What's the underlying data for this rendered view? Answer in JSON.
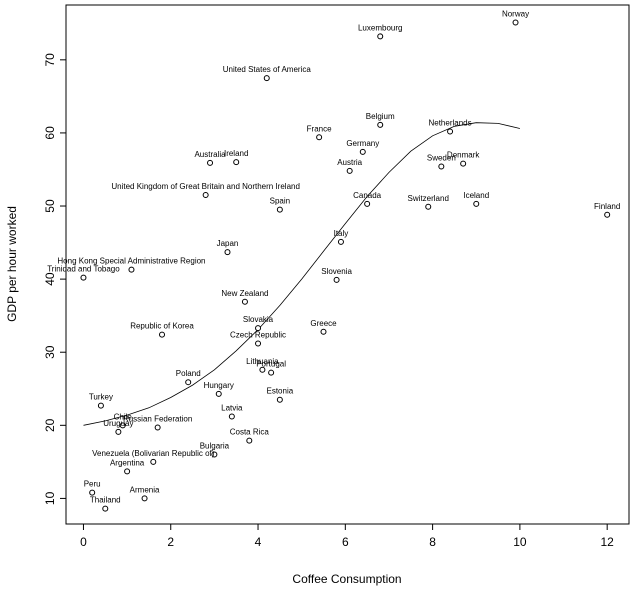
{
  "chart_data": {
    "type": "scatter",
    "title": "",
    "xlabel": "Coffee Consumption",
    "ylabel": "GDP per hour worked",
    "xlim": [
      -0.4,
      12.5
    ],
    "ylim": [
      6.5,
      77.5
    ],
    "x_ticks": [
      0,
      2,
      4,
      6,
      8,
      10,
      12
    ],
    "y_ticks": [
      10,
      20,
      30,
      40,
      50,
      60,
      70
    ],
    "grid": false,
    "points": [
      {
        "label": "Norway",
        "x": 9.9,
        "y": 75.1
      },
      {
        "label": "Luxembourg",
        "x": 6.8,
        "y": 73.2
      },
      {
        "label": "United States of America",
        "x": 4.2,
        "y": 67.5
      },
      {
        "label": "Belgium",
        "x": 6.8,
        "y": 61.1
      },
      {
        "label": "Netherlands",
        "x": 8.4,
        "y": 60.2
      },
      {
        "label": "France",
        "x": 5.4,
        "y": 59.4
      },
      {
        "label": "Germany",
        "x": 6.4,
        "y": 57.4
      },
      {
        "label": "Australia",
        "x": 2.9,
        "y": 55.9
      },
      {
        "label": "Ireland",
        "x": 3.5,
        "y": 56.0
      },
      {
        "label": "Denmark",
        "x": 8.7,
        "y": 55.8
      },
      {
        "label": "Sweden",
        "x": 8.2,
        "y": 55.4
      },
      {
        "label": "Austria",
        "x": 6.1,
        "y": 54.8
      },
      {
        "label": "United Kingdom of Great Britain and Northern Ireland",
        "x": 2.8,
        "y": 51.5
      },
      {
        "label": "Canada",
        "x": 6.5,
        "y": 50.3
      },
      {
        "label": "Iceland",
        "x": 9.0,
        "y": 50.3
      },
      {
        "label": "Switzerland",
        "x": 7.9,
        "y": 49.9
      },
      {
        "label": "Spain",
        "x": 4.5,
        "y": 49.5
      },
      {
        "label": "Finland",
        "x": 12.0,
        "y": 48.8
      },
      {
        "label": "Italy",
        "x": 5.9,
        "y": 45.1
      },
      {
        "label": "Japan",
        "x": 3.3,
        "y": 43.7
      },
      {
        "label": "Hong Kong Special Administrative Region",
        "x": 1.1,
        "y": 41.3
      },
      {
        "label": "Trinidad and Tobago",
        "x": 0.0,
        "y": 40.2
      },
      {
        "label": "Slovenia",
        "x": 5.8,
        "y": 39.9
      },
      {
        "label": "New Zealand",
        "x": 3.7,
        "y": 36.9
      },
      {
        "label": "Slovakia",
        "x": 4.0,
        "y": 33.3
      },
      {
        "label": "Greece",
        "x": 5.5,
        "y": 32.8
      },
      {
        "label": "Republic of Korea",
        "x": 1.8,
        "y": 32.4
      },
      {
        "label": "Czech Republic",
        "x": 4.0,
        "y": 31.2
      },
      {
        "label": "Lithuania",
        "x": 4.1,
        "y": 27.6
      },
      {
        "label": "Portugal",
        "x": 4.3,
        "y": 27.2
      },
      {
        "label": "Poland",
        "x": 2.4,
        "y": 25.9
      },
      {
        "label": "Hungary",
        "x": 3.1,
        "y": 24.3
      },
      {
        "label": "Estonia",
        "x": 4.5,
        "y": 23.5
      },
      {
        "label": "Turkey",
        "x": 0.4,
        "y": 22.7
      },
      {
        "label": "Latvia",
        "x": 3.4,
        "y": 21.2
      },
      {
        "label": "Chile",
        "x": 0.9,
        "y": 20.0
      },
      {
        "label": "Russian Federation",
        "x": 1.7,
        "y": 19.7
      },
      {
        "label": "Uruguay",
        "x": 0.8,
        "y": 19.1
      },
      {
        "label": "Costa Rica",
        "x": 3.8,
        "y": 17.9
      },
      {
        "label": "Bulgaria",
        "x": 3.0,
        "y": 16.0
      },
      {
        "label": "Venezuela (Bolivarian Republic of)",
        "x": 1.6,
        "y": 15.0
      },
      {
        "label": "Argentina",
        "x": 1.0,
        "y": 13.7
      },
      {
        "label": "Peru",
        "x": 0.2,
        "y": 10.8
      },
      {
        "label": "Armenia",
        "x": 1.4,
        "y": 10.0
      },
      {
        "label": "Thailand",
        "x": 0.5,
        "y": 8.6
      }
    ],
    "fit_line": {
      "x": [
        0.0,
        0.5,
        1.0,
        1.5,
        2.0,
        2.5,
        3.0,
        3.5,
        4.0,
        4.5,
        5.0,
        5.5,
        6.0,
        6.5,
        7.0,
        7.5,
        8.0,
        8.5,
        9.0,
        9.5,
        10.0
      ],
      "y": [
        20.0,
        20.6,
        21.4,
        22.4,
        23.8,
        25.5,
        27.6,
        30.2,
        33.1,
        36.4,
        40.0,
        43.8,
        47.6,
        51.3,
        54.6,
        57.5,
        59.6,
        60.9,
        61.4,
        61.3,
        60.6
      ]
    }
  }
}
